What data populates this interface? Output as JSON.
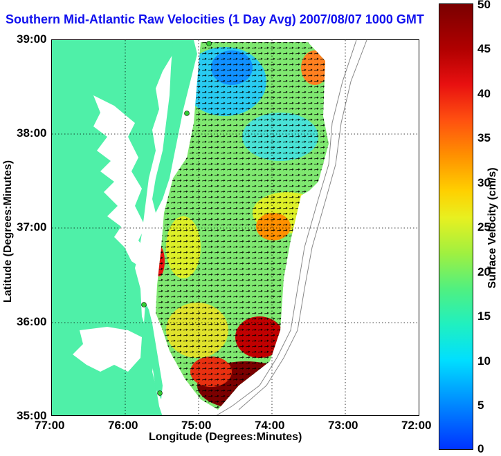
{
  "title": "Southern Mid-Atlantic Raw Velocities (1 Day Avg) 2007/08/07 1000 GMT",
  "xlabel": "Longitude (Degrees:Minutes)",
  "ylabel": "Latitude (Degrees:Minutes)",
  "colorbar": {
    "label": "Surface Velocity (cm/s)",
    "ticks": [
      "0",
      "5",
      "10",
      "15",
      "20",
      "25",
      "30",
      "35",
      "40",
      "45",
      "50"
    ],
    "colors": [
      "#0033ff",
      "#00dfff",
      "#50f080",
      "#e8f020",
      "#ff9000",
      "#e81010",
      "#7a0000"
    ]
  },
  "x_ticks": [
    "77:00",
    "76:00",
    "75:00",
    "74:00",
    "73:00",
    "72:00"
  ],
  "y_ticks": [
    "39:00",
    "38:00",
    "37:00",
    "36:00",
    "35:00"
  ],
  "colors": {
    "land": "#4ff0a8",
    "title": "#1010ee",
    "station": "#33cc33"
  }
}
